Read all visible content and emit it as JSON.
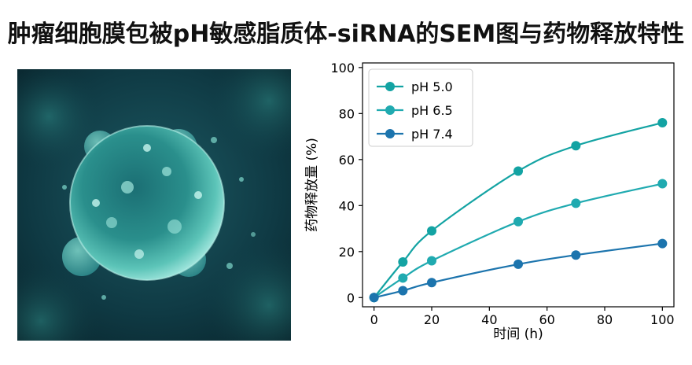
{
  "title": "肿瘤细胞膜包被pH敏感脂质体-siRNA的SEM图与药物释放特性",
  "chart_data": {
    "type": "line",
    "xlabel": "时间 (h)",
    "ylabel": "药物释放量 (%)",
    "xlim": [
      -4,
      104
    ],
    "ylim": [
      -4,
      102
    ],
    "x_ticks": [
      0,
      20,
      40,
      60,
      80,
      100
    ],
    "y_ticks": [
      0,
      20,
      40,
      60,
      80,
      100
    ],
    "legend_position": "top-left",
    "grid": false,
    "x": [
      0,
      10,
      20,
      50,
      70,
      100
    ],
    "series": [
      {
        "name": "pH 5.0",
        "color": "#13a3a3",
        "values": [
          0,
          15.5,
          29,
          55,
          66,
          76
        ]
      },
      {
        "name": "pH 6.5",
        "color": "#20aab0",
        "values": [
          0,
          8.5,
          16,
          33,
          41,
          49.5
        ]
      },
      {
        "name": "pH 7.4",
        "color": "#1c74ad",
        "values": [
          0,
          3,
          6.5,
          14.5,
          18.5,
          23.5
        ]
      }
    ]
  }
}
